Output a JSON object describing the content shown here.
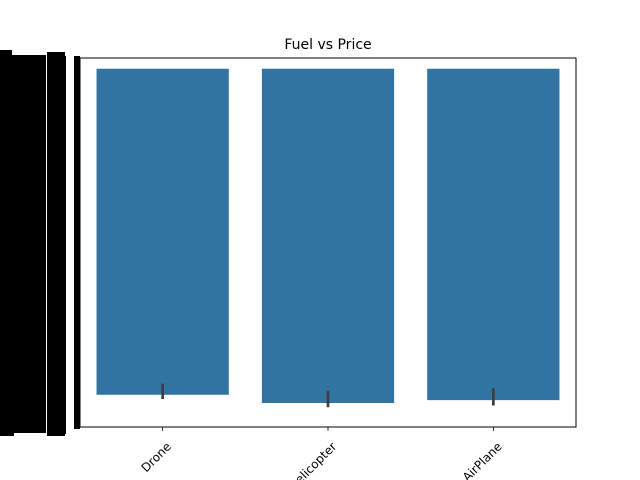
{
  "chart_data": {
    "type": "bar",
    "title": "Fuel vs Price",
    "xlabel": "",
    "ylabel": "",
    "categories": [
      "Drone",
      "Helicopter",
      "AirPlane"
    ],
    "category_tick_labels": [
      "Drone",
      "elicopter",
      "AirPlane"
    ],
    "bar_tops": [
      1.0,
      1.0,
      1.0
    ],
    "bar_bottoms": [
      0.09,
      0.067,
      0.075
    ],
    "error_bars": [
      {
        "low": 0.078,
        "high": 0.121
      },
      {
        "low": 0.055,
        "high": 0.101
      },
      {
        "low": 0.06,
        "high": 0.108
      }
    ],
    "ylim": [
      0,
      1.03
    ],
    "y_tick_labels": "illegible (overplotted, rendered as solid black)",
    "grid": false,
    "legend": "none",
    "colors": {
      "bar": "#3274a1",
      "error_bar": "#3d3d3d",
      "axes": "#000000"
    }
  }
}
